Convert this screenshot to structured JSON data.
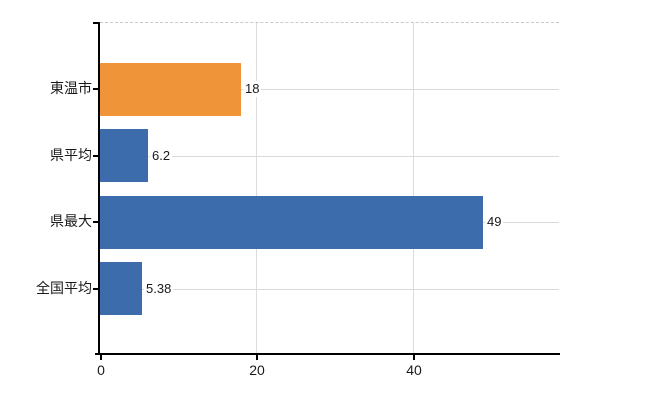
{
  "chart_data": {
    "type": "bar",
    "orientation": "horizontal",
    "title": "",
    "xlabel": "",
    "ylabel": "",
    "categories": [
      "東温市",
      "県平均",
      "県最大",
      "全国平均"
    ],
    "values": [
      18,
      6.2,
      49,
      5.38
    ],
    "value_labels": [
      "18",
      "6.2",
      "49",
      "5.38"
    ],
    "bar_colors": [
      "#EF9439",
      "#3D6CAC",
      "#3D6CAC",
      "#3D6CAC"
    ],
    "x_ticks": [
      0,
      20,
      40
    ],
    "x_tick_labels": [
      "0",
      "20",
      "40"
    ],
    "xlim": [
      0,
      58.7
    ],
    "grid": true,
    "legend": false
  },
  "colors": {
    "accent_orange": "#EF9439",
    "accent_blue": "#3D6CAC",
    "gridline": "#D8DCD4",
    "vertical_gridline": "#DCDCDC",
    "axis": "#000000",
    "text": "#1A1A1A",
    "plot_top_border": "#C9C9C9",
    "background": "#FFFFFF"
  }
}
